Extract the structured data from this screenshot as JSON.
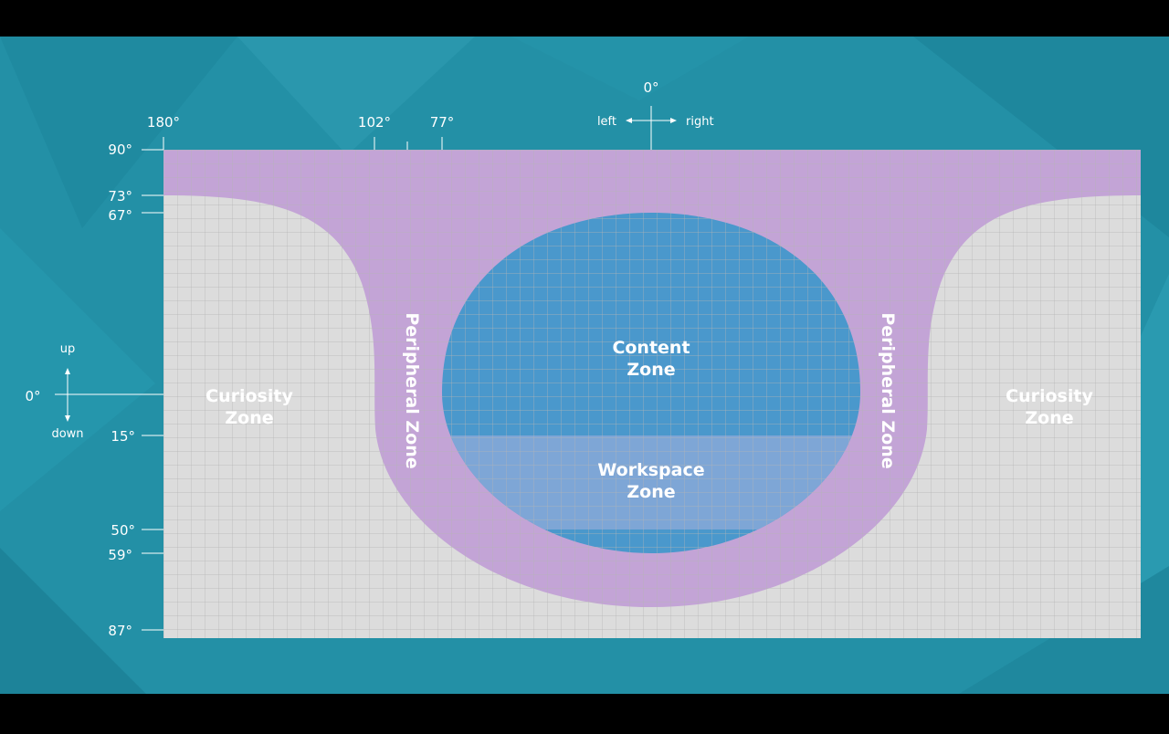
{
  "colors": {
    "letterbox": "#000000",
    "background": "#2390a6",
    "grid_base": "#dcdcdc",
    "grid_line": "#b5b5b5",
    "peripheral": "#c3a4d6",
    "content": "#4a98cc",
    "workspace": "#7ea6d6",
    "label": "#ffffff"
  },
  "axis_top": {
    "center_angle": "0°",
    "left_label": "left",
    "right_label": "right",
    "ticks": [
      {
        "label": "180°"
      },
      {
        "label": "102°"
      },
      {
        "label": "77°"
      }
    ]
  },
  "axis_left": {
    "center_angle": "0°",
    "up_label": "up",
    "down_label": "down",
    "ticks": [
      {
        "label": "90°"
      },
      {
        "label": "73°"
      },
      {
        "label": "67°"
      },
      {
        "label": "15°"
      },
      {
        "label": "50°"
      },
      {
        "label": "59°"
      },
      {
        "label": "87°"
      }
    ]
  },
  "zones": {
    "curiosity_left": {
      "line1": "Curiosity",
      "line2": "Zone"
    },
    "curiosity_right": {
      "line1": "Curiosity",
      "line2": "Zone"
    },
    "peripheral_left": "Peripheral Zone",
    "peripheral_right": "Peripheral Zone",
    "content": {
      "line1": "Content",
      "line2": "Zone"
    },
    "workspace": {
      "line1": "Workspace",
      "line2": "Zone"
    }
  }
}
